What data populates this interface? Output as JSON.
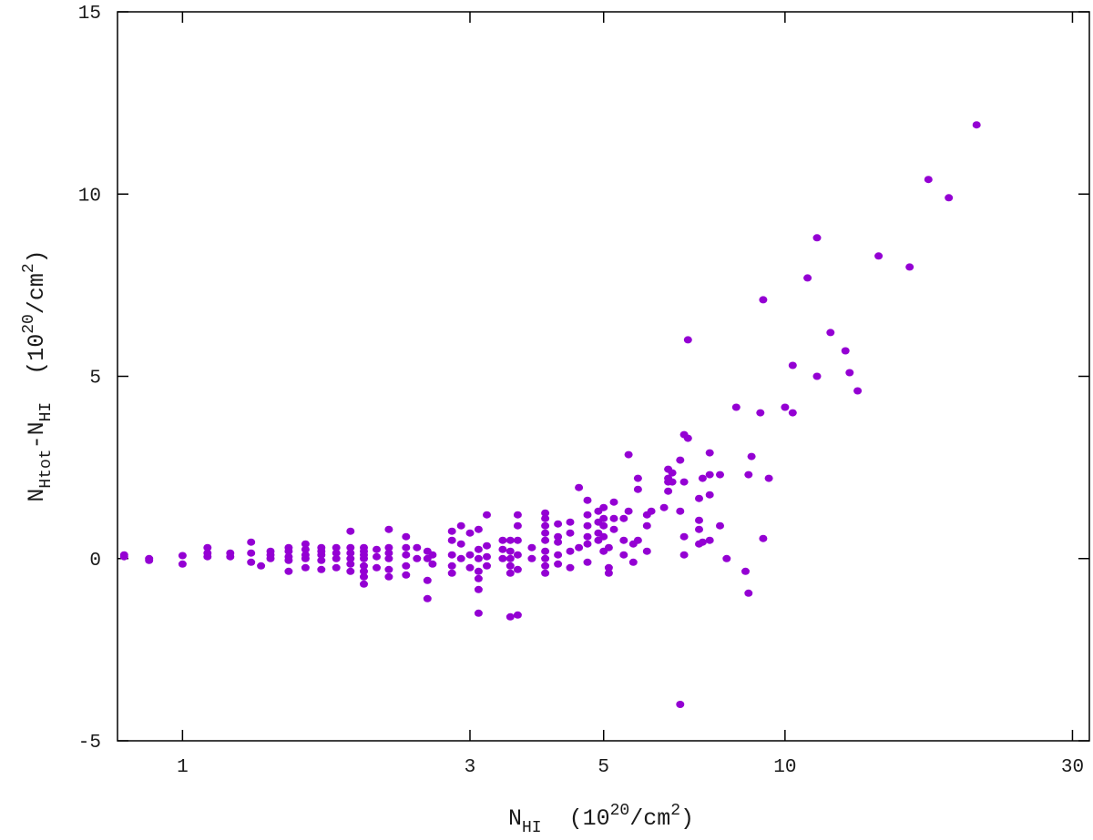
{
  "chart_data": {
    "type": "scatter",
    "title": "",
    "x_scale": "log",
    "xlim": [
      0.78,
      32
    ],
    "ylim": [
      -5,
      15
    ],
    "x_ticks": [
      1,
      3,
      5,
      10,
      30
    ],
    "y_ticks": [
      -5,
      0,
      5,
      10,
      15
    ],
    "x_tick_labels": [
      "1",
      "3",
      "5",
      "10",
      "30"
    ],
    "y_tick_labels": [
      "-5",
      "0",
      "5",
      "10",
      "15"
    ],
    "xlabel": {
      "main": "N",
      "sub": "HI",
      "unit_open": "  (10",
      "unit_sup": "20",
      "unit_mid": "/cm",
      "unit_sup2": "2",
      "unit_close": ")"
    },
    "ylabel": {
      "main": "N",
      "sub": "Htot",
      "minus": "-N",
      "sub2": "HI",
      "unit_open": "  (10",
      "unit_sup": "20",
      "unit_mid": "/cm",
      "unit_sup2": "2",
      "unit_close": ")"
    },
    "marker_color": "#9400d3",
    "grid": false,
    "series": [
      {
        "points": [
          [
            0.8,
            0.05
          ],
          [
            0.8,
            0.1
          ],
          [
            0.88,
            -0.05
          ],
          [
            0.88,
            0.0
          ],
          [
            1.0,
            -0.15
          ],
          [
            1.0,
            0.08
          ],
          [
            1.1,
            0.05
          ],
          [
            1.1,
            0.3
          ],
          [
            1.1,
            0.15
          ],
          [
            1.2,
            0.05
          ],
          [
            1.2,
            0.15
          ],
          [
            1.3,
            -0.1
          ],
          [
            1.3,
            0.15
          ],
          [
            1.3,
            0.45
          ],
          [
            1.35,
            -0.2
          ],
          [
            1.4,
            0.0
          ],
          [
            1.4,
            0.1
          ],
          [
            1.4,
            0.2
          ],
          [
            1.5,
            -0.35
          ],
          [
            1.5,
            -0.05
          ],
          [
            1.5,
            0.05
          ],
          [
            1.5,
            0.2
          ],
          [
            1.5,
            0.3
          ],
          [
            1.6,
            -0.25
          ],
          [
            1.6,
            0.0
          ],
          [
            1.6,
            0.1
          ],
          [
            1.6,
            0.25
          ],
          [
            1.6,
            0.4
          ],
          [
            1.7,
            -0.3
          ],
          [
            1.7,
            -0.05
          ],
          [
            1.7,
            0.1
          ],
          [
            1.7,
            0.2
          ],
          [
            1.7,
            0.3
          ],
          [
            1.8,
            -0.25
          ],
          [
            1.8,
            0.0
          ],
          [
            1.8,
            0.15
          ],
          [
            1.8,
            0.3
          ],
          [
            1.9,
            -0.35
          ],
          [
            1.9,
            -0.15
          ],
          [
            1.9,
            0.0
          ],
          [
            1.9,
            0.15
          ],
          [
            1.9,
            0.3
          ],
          [
            1.9,
            0.75
          ],
          [
            2.0,
            -0.7
          ],
          [
            2.0,
            -0.5
          ],
          [
            2.0,
            -0.35
          ],
          [
            2.0,
            -0.2
          ],
          [
            2.0,
            0.0
          ],
          [
            2.0,
            0.1
          ],
          [
            2.0,
            0.2
          ],
          [
            2.0,
            0.3
          ],
          [
            2.1,
            -0.25
          ],
          [
            2.1,
            0.05
          ],
          [
            2.1,
            0.25
          ],
          [
            2.2,
            -0.5
          ],
          [
            2.2,
            -0.3
          ],
          [
            2.2,
            0.0
          ],
          [
            2.2,
            0.15
          ],
          [
            2.2,
            0.3
          ],
          [
            2.2,
            0.8
          ],
          [
            2.35,
            -0.45
          ],
          [
            2.35,
            -0.2
          ],
          [
            2.35,
            0.1
          ],
          [
            2.35,
            0.3
          ],
          [
            2.35,
            0.6
          ],
          [
            2.45,
            0.0
          ],
          [
            2.45,
            0.3
          ],
          [
            2.55,
            -1.1
          ],
          [
            2.55,
            -0.6
          ],
          [
            2.55,
            0.0
          ],
          [
            2.55,
            0.2
          ],
          [
            2.6,
            -0.15
          ],
          [
            2.6,
            0.1
          ],
          [
            2.8,
            -0.4
          ],
          [
            2.8,
            -0.2
          ],
          [
            2.8,
            0.1
          ],
          [
            2.8,
            0.5
          ],
          [
            2.8,
            0.75
          ],
          [
            2.9,
            0.0
          ],
          [
            2.9,
            0.4
          ],
          [
            2.9,
            0.9
          ],
          [
            3.0,
            -0.25
          ],
          [
            3.0,
            0.1
          ],
          [
            3.0,
            0.7
          ],
          [
            3.1,
            -1.5
          ],
          [
            3.1,
            -0.85
          ],
          [
            3.1,
            -0.55
          ],
          [
            3.1,
            -0.35
          ],
          [
            3.1,
            0.0
          ],
          [
            3.1,
            0.25
          ],
          [
            3.1,
            0.8
          ],
          [
            3.2,
            -0.2
          ],
          [
            3.2,
            0.05
          ],
          [
            3.2,
            0.35
          ],
          [
            3.2,
            1.2
          ],
          [
            3.4,
            0.0
          ],
          [
            3.4,
            0.25
          ],
          [
            3.4,
            0.5
          ],
          [
            3.5,
            -1.6
          ],
          [
            3.5,
            -0.4
          ],
          [
            3.5,
            -0.2
          ],
          [
            3.5,
            0.0
          ],
          [
            3.5,
            0.2
          ],
          [
            3.5,
            0.5
          ],
          [
            3.6,
            -1.55
          ],
          [
            3.6,
            -0.3
          ],
          [
            3.6,
            0.1
          ],
          [
            3.6,
            0.5
          ],
          [
            3.6,
            0.9
          ],
          [
            3.6,
            1.2
          ],
          [
            3.8,
            0.0
          ],
          [
            3.8,
            0.3
          ],
          [
            4.0,
            -0.4
          ],
          [
            4.0,
            -0.2
          ],
          [
            4.0,
            0.0
          ],
          [
            4.0,
            0.2
          ],
          [
            4.0,
            0.5
          ],
          [
            4.0,
            0.7
          ],
          [
            4.0,
            0.9
          ],
          [
            4.0,
            1.1
          ],
          [
            4.0,
            1.25
          ],
          [
            4.2,
            -0.15
          ],
          [
            4.2,
            0.1
          ],
          [
            4.2,
            0.45
          ],
          [
            4.2,
            0.6
          ],
          [
            4.2,
            0.95
          ],
          [
            4.4,
            -0.25
          ],
          [
            4.4,
            0.2
          ],
          [
            4.4,
            0.7
          ],
          [
            4.4,
            1.0
          ],
          [
            4.55,
            0.3
          ],
          [
            4.55,
            1.95
          ],
          [
            4.7,
            -0.1
          ],
          [
            4.7,
            0.4
          ],
          [
            4.7,
            0.6
          ],
          [
            4.7,
            0.9
          ],
          [
            4.7,
            1.2
          ],
          [
            4.7,
            1.6
          ],
          [
            4.9,
            0.5
          ],
          [
            4.9,
            0.7
          ],
          [
            4.9,
            1.0
          ],
          [
            4.9,
            1.3
          ],
          [
            5.0,
            0.2
          ],
          [
            5.0,
            0.6
          ],
          [
            5.0,
            0.9
          ],
          [
            5.0,
            1.1
          ],
          [
            5.0,
            1.4
          ],
          [
            5.1,
            -0.4
          ],
          [
            5.1,
            -0.25
          ],
          [
            5.1,
            0.3
          ],
          [
            5.2,
            0.8
          ],
          [
            5.2,
            1.1
          ],
          [
            5.2,
            1.55
          ],
          [
            5.4,
            0.1
          ],
          [
            5.4,
            0.5
          ],
          [
            5.4,
            1.1
          ],
          [
            5.5,
            1.3
          ],
          [
            5.5,
            2.85
          ],
          [
            5.6,
            -0.1
          ],
          [
            5.6,
            0.4
          ],
          [
            5.7,
            0.5
          ],
          [
            5.7,
            1.9
          ],
          [
            5.7,
            2.2
          ],
          [
            5.9,
            0.2
          ],
          [
            5.9,
            0.9
          ],
          [
            5.9,
            1.2
          ],
          [
            6.0,
            1.3
          ],
          [
            6.3,
            1.4
          ],
          [
            6.4,
            1.85
          ],
          [
            6.4,
            2.1
          ],
          [
            6.4,
            2.2
          ],
          [
            6.4,
            2.45
          ],
          [
            6.5,
            2.1
          ],
          [
            6.5,
            2.35
          ],
          [
            6.7,
            -4.0
          ],
          [
            6.7,
            1.3
          ],
          [
            6.7,
            2.7
          ],
          [
            6.8,
            0.1
          ],
          [
            6.8,
            0.6
          ],
          [
            6.8,
            2.1
          ],
          [
            6.8,
            3.4
          ],
          [
            6.9,
            3.3
          ],
          [
            6.9,
            6.0
          ],
          [
            7.2,
            0.4
          ],
          [
            7.2,
            0.8
          ],
          [
            7.2,
            1.05
          ],
          [
            7.2,
            1.65
          ],
          [
            7.3,
            0.45
          ],
          [
            7.3,
            2.2
          ],
          [
            7.5,
            0.5
          ],
          [
            7.5,
            1.75
          ],
          [
            7.5,
            2.3
          ],
          [
            7.5,
            2.9
          ],
          [
            7.8,
            0.9
          ],
          [
            7.8,
            2.3
          ],
          [
            8.0,
            0.0
          ],
          [
            8.3,
            4.15
          ],
          [
            8.6,
            -0.35
          ],
          [
            8.7,
            -0.95
          ],
          [
            8.7,
            2.3
          ],
          [
            8.8,
            2.8
          ],
          [
            9.1,
            4.0
          ],
          [
            9.2,
            0.55
          ],
          [
            9.2,
            7.1
          ],
          [
            9.4,
            2.2
          ],
          [
            10.0,
            4.15
          ],
          [
            10.3,
            5.3
          ],
          [
            10.3,
            4.0
          ],
          [
            10.9,
            7.7
          ],
          [
            11.3,
            5.0
          ],
          [
            11.3,
            8.8
          ],
          [
            11.9,
            6.2
          ],
          [
            12.6,
            5.7
          ],
          [
            12.8,
            5.1
          ],
          [
            13.2,
            4.6
          ],
          [
            14.3,
            8.3
          ],
          [
            16.1,
            8.0
          ],
          [
            17.3,
            10.4
          ],
          [
            18.7,
            9.9
          ],
          [
            20.8,
            11.9
          ]
        ]
      }
    ]
  }
}
